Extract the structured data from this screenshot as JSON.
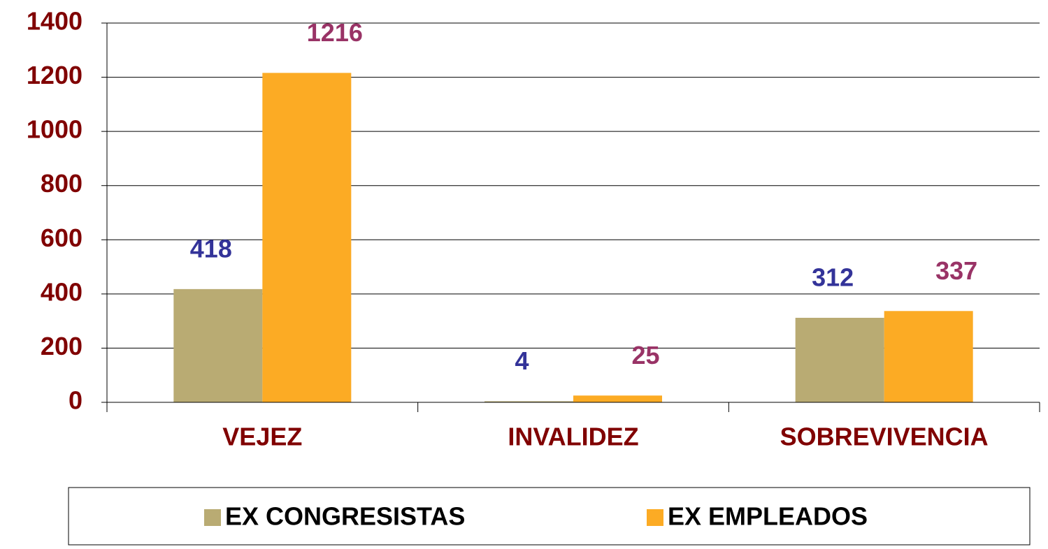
{
  "chart_data": {
    "type": "bar",
    "categories": [
      "VEJEZ",
      "INVALIDEZ",
      "SOBREVIVENCIA"
    ],
    "series": [
      {
        "name": "EX CONGRESISTAS",
        "color": "#b9ab73",
        "label_color": "#333399",
        "values": [
          418,
          4,
          312
        ]
      },
      {
        "name": "EX EMPLEADOS",
        "color": "#fcab24",
        "label_color": "#993366",
        "values": [
          1216,
          25,
          337
        ]
      }
    ],
    "ylim": [
      0,
      1400
    ],
    "yticks": [
      0,
      200,
      400,
      600,
      800,
      1000,
      1200,
      1400
    ],
    "grid": true,
    "legend": "bottom"
  }
}
